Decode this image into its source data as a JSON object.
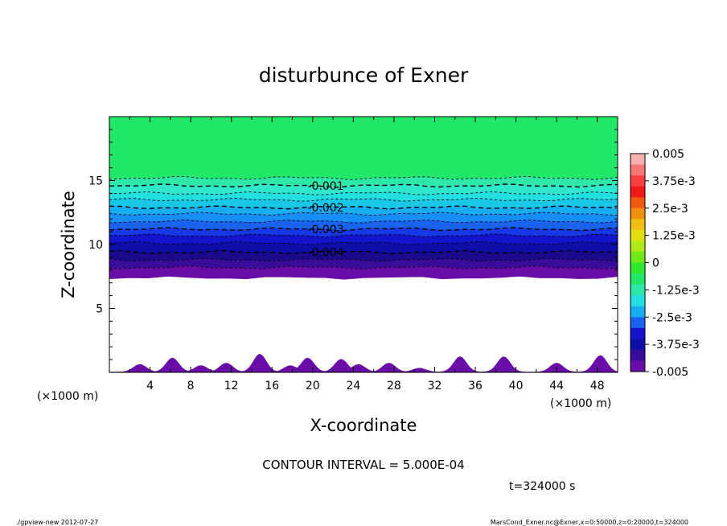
{
  "chart_data": {
    "type": "contour",
    "title": "disturbunce of Exner",
    "xlabel": "X-coordinate",
    "ylabel": "Z-coordinate",
    "x_unit_left": "(×1000 m)",
    "x_unit_right": "(×1000 m)",
    "xlim": [
      0,
      50
    ],
    "ylim": [
      0,
      20
    ],
    "x_ticks": [
      4,
      8,
      12,
      16,
      20,
      24,
      28,
      32,
      36,
      40,
      44,
      48
    ],
    "y_ticks": [
      5,
      10,
      15
    ],
    "contour_interval_text": "CONTOUR INTERVAL = 5.000E-04",
    "time_text": "t=324000 s",
    "contour_labels": [
      {
        "text": "-0.001",
        "x": 19.5,
        "z": 14.6
      },
      {
        "text": "-0.002",
        "x": 19.5,
        "z": 12.9
      },
      {
        "text": "-0.003",
        "x": 19.5,
        "z": 11.2
      },
      {
        "text": "-0.004",
        "x": 19.5,
        "z": 9.4
      }
    ],
    "bands": [
      {
        "z_top": 20.0,
        "z_bottom": 15.2,
        "color": "#22e86a"
      },
      {
        "z_top": 15.2,
        "z_bottom": 14.6,
        "color": "#2de8a8"
      },
      {
        "z_top": 14.6,
        "z_bottom": 14.0,
        "color": "#2fe8cc"
      },
      {
        "z_top": 14.0,
        "z_bottom": 13.5,
        "color": "#22e0e0"
      },
      {
        "z_top": 13.5,
        "z_bottom": 12.9,
        "color": "#19c8e6"
      },
      {
        "z_top": 12.9,
        "z_bottom": 12.4,
        "color": "#16aef0"
      },
      {
        "z_top": 12.4,
        "z_bottom": 11.8,
        "color": "#178ef5"
      },
      {
        "z_top": 11.8,
        "z_bottom": 11.2,
        "color": "#1a62f0"
      },
      {
        "z_top": 11.2,
        "z_bottom": 10.7,
        "color": "#1638e6"
      },
      {
        "z_top": 10.7,
        "z_bottom": 10.1,
        "color": "#1414cc"
      },
      {
        "z_top": 10.1,
        "z_bottom": 9.4,
        "color": "#0e0ea8"
      },
      {
        "z_top": 9.4,
        "z_bottom": 8.8,
        "color": "#1a0a8c"
      },
      {
        "z_top": 8.8,
        "z_bottom": 8.2,
        "color": "#3a0c9a"
      },
      {
        "z_top": 8.2,
        "z_bottom": 7.4,
        "color": "#6a0ca8"
      }
    ],
    "bottom_bumps": [
      {
        "x": 3.0,
        "h": 0.6
      },
      {
        "x": 6.2,
        "h": 1.1
      },
      {
        "x": 9.0,
        "h": 0.5
      },
      {
        "x": 11.5,
        "h": 0.7
      },
      {
        "x": 14.8,
        "h": 1.4
      },
      {
        "x": 17.8,
        "h": 0.5
      },
      {
        "x": 19.5,
        "h": 1.1
      },
      {
        "x": 22.8,
        "h": 1.0
      },
      {
        "x": 24.5,
        "h": 0.6
      },
      {
        "x": 27.5,
        "h": 0.7
      },
      {
        "x": 30.5,
        "h": 0.3
      },
      {
        "x": 34.5,
        "h": 1.2
      },
      {
        "x": 38.8,
        "h": 1.2
      },
      {
        "x": 44.0,
        "h": 0.7
      },
      {
        "x": 48.3,
        "h": 1.3
      }
    ],
    "colorbar": {
      "labels": [
        "0.005",
        "3.75e-3",
        "2.5e-3",
        "1.25e-3",
        "0",
        "-1.25e-3",
        "-2.5e-3",
        "-3.75e-3",
        "-0.005"
      ],
      "colors": [
        "#f8b0b0",
        "#f87878",
        "#f84040",
        "#f01818",
        "#f05a10",
        "#f09010",
        "#f0c010",
        "#e0e010",
        "#b0e818",
        "#70e818",
        "#30e830",
        "#22e86a",
        "#2de8a8",
        "#22e0e0",
        "#16aef0",
        "#1a62f0",
        "#1414cc",
        "#0e0ea8",
        "#3a0c9a",
        "#6a0ca8"
      ]
    }
  },
  "footer": {
    "left": "./gpview-new  2012-07-27",
    "right": "MarsCond_Exner.nc@Exner,x=0:50000,z=0:20000,t=324000"
  }
}
